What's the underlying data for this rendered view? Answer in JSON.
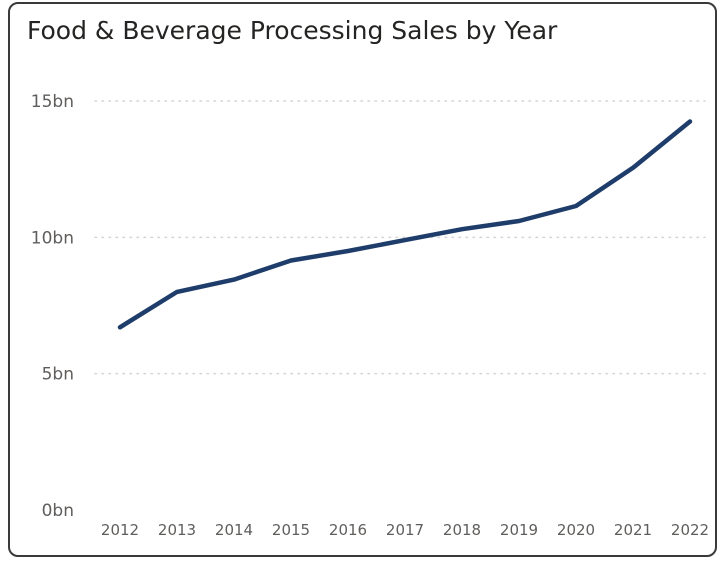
{
  "chart_data": {
    "type": "line",
    "title": "Food & Beverage Processing Sales by Year",
    "xlabel": "",
    "ylabel": "",
    "x": [
      "2012",
      "2013",
      "2014",
      "2015",
      "2016",
      "2017",
      "2018",
      "2019",
      "2020",
      "2021",
      "2022"
    ],
    "series": [
      {
        "values": [
          6.7,
          8.0,
          8.45,
          9.15,
          9.5,
          9.9,
          10.3,
          10.6,
          11.15,
          12.55,
          14.25
        ]
      }
    ],
    "ylim": [
      0,
      15
    ],
    "yticks": [
      0,
      5,
      10,
      15
    ],
    "ytick_labels": [
      "0bn",
      "5bn",
      "10bn",
      "15bn"
    ],
    "grid": "horizontal-dotted",
    "legend": "none",
    "colors": {
      "line": "#1f3d6b",
      "grid": "#d4d4d4",
      "text": "#605e5c",
      "title": "#252423",
      "border": "#3a3a3a"
    }
  }
}
